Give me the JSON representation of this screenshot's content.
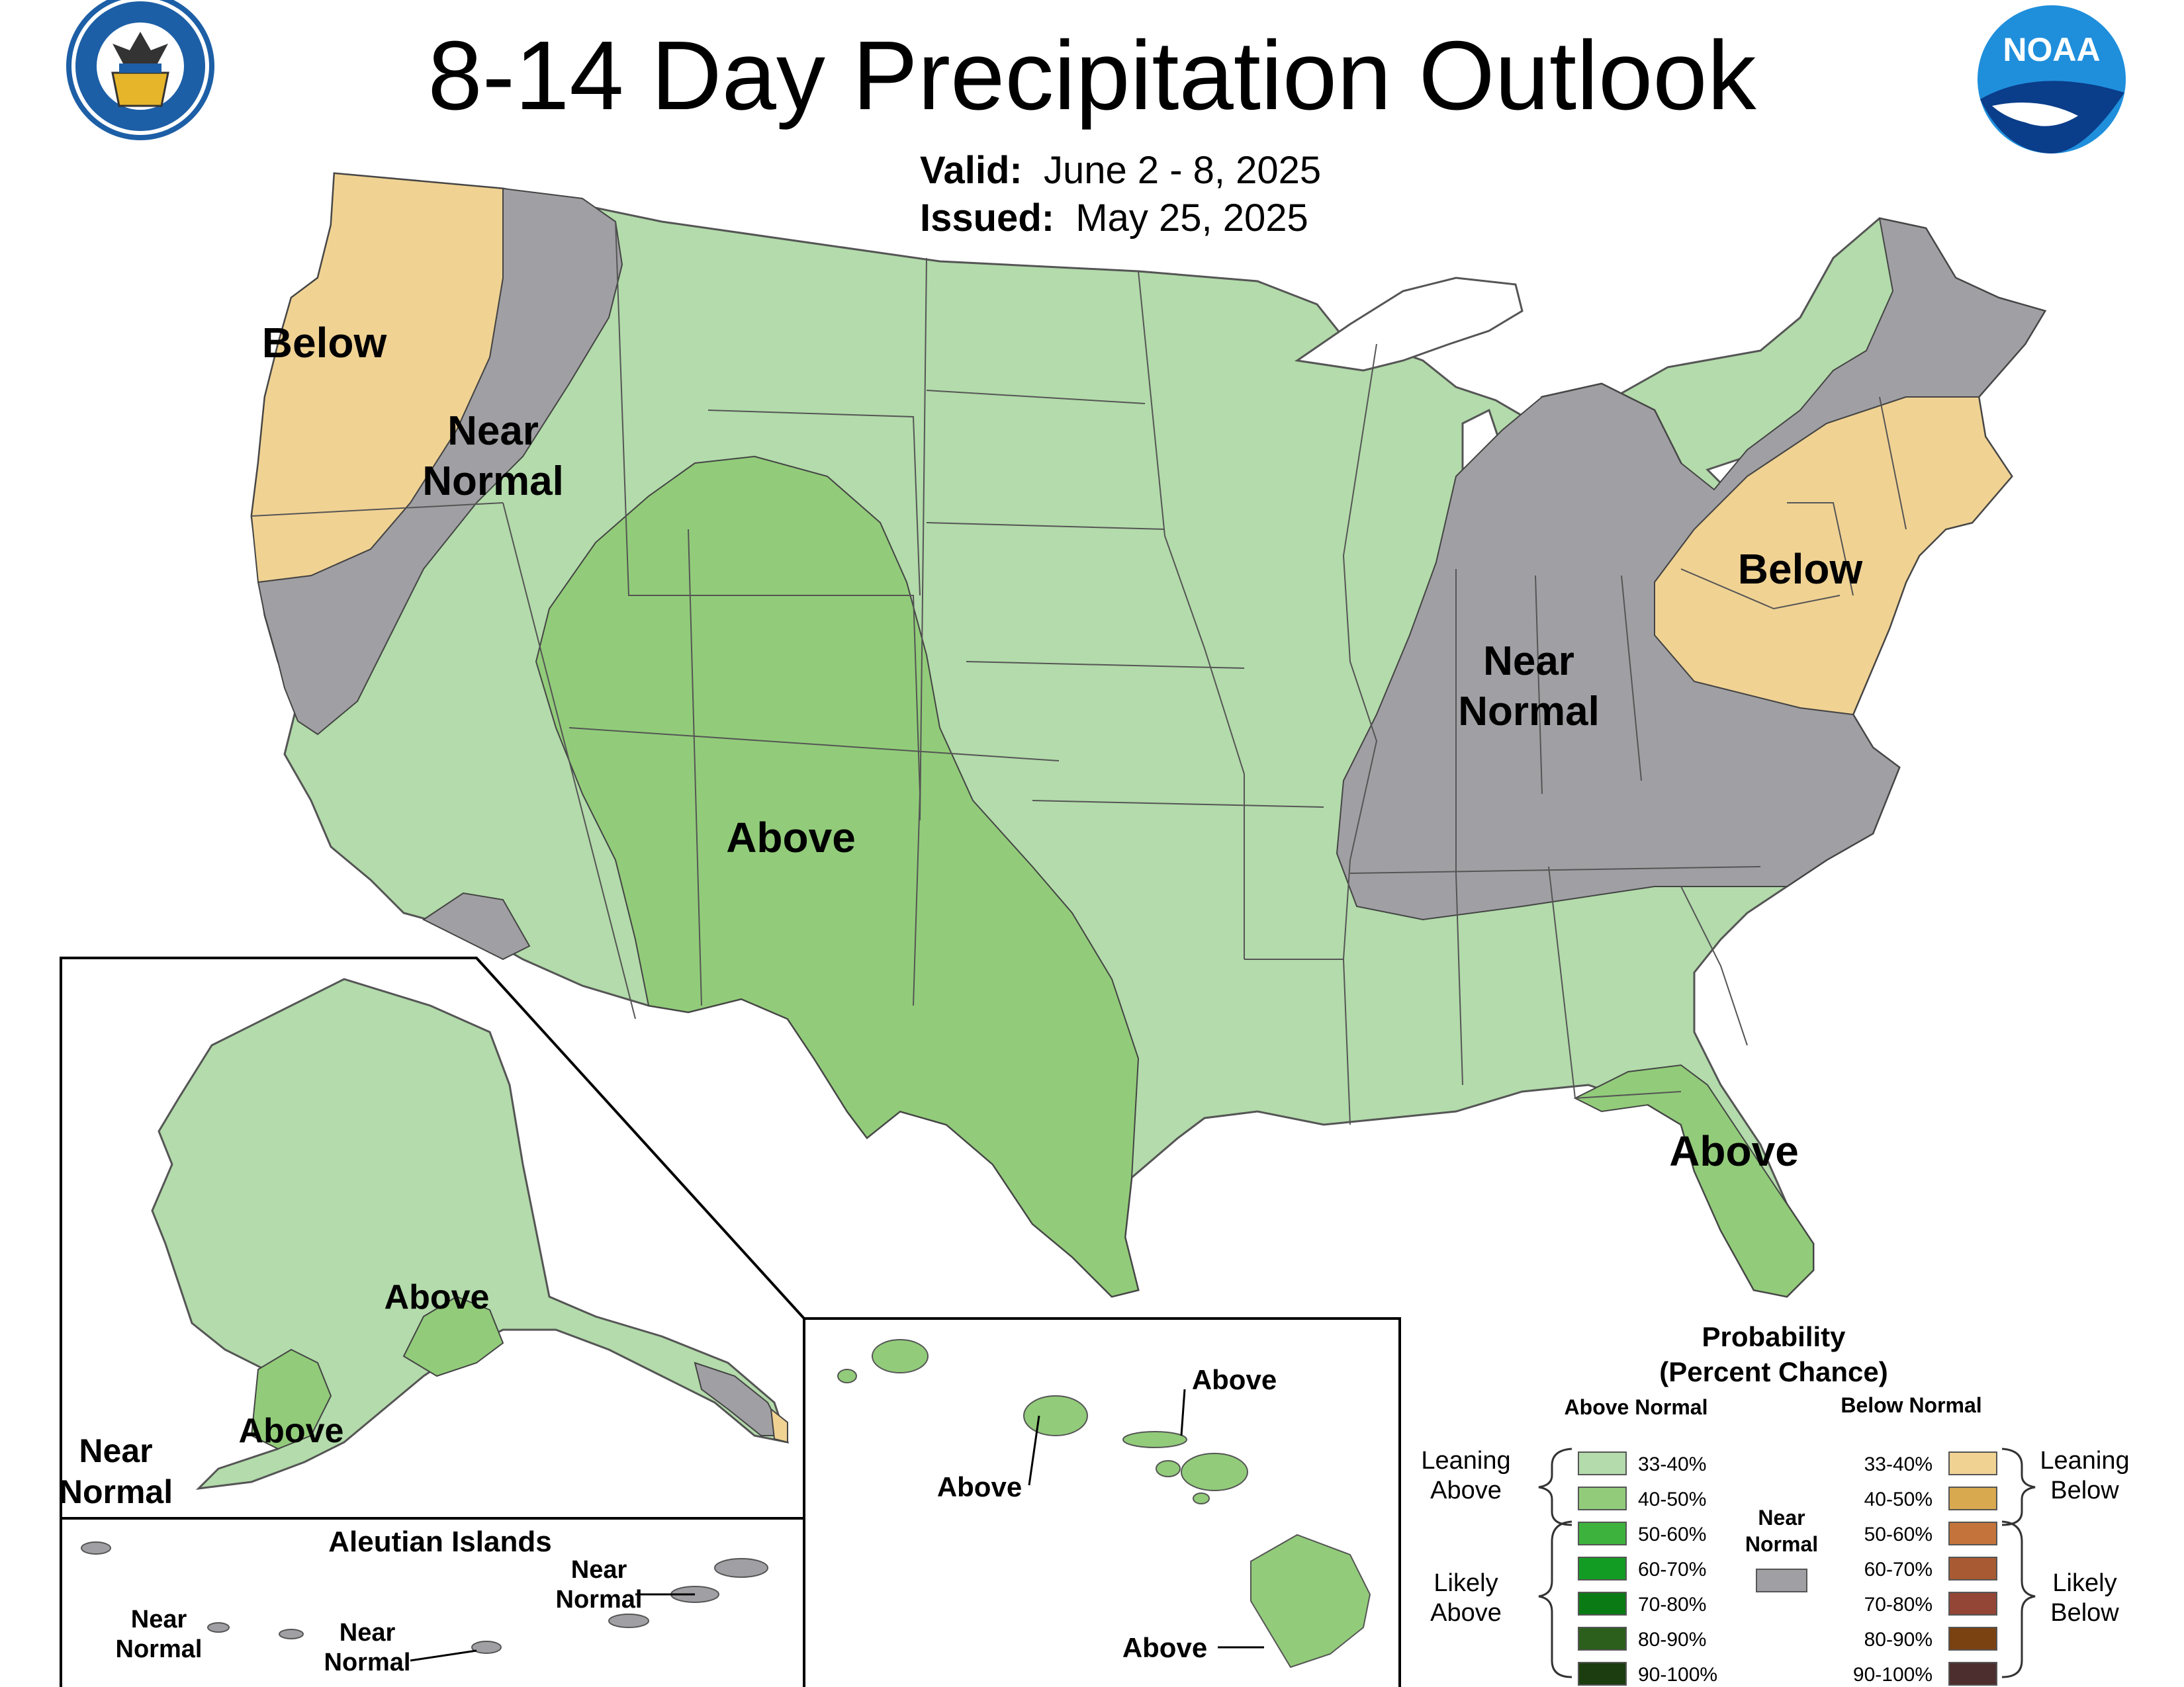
{
  "header": {
    "title": "8-14 Day Precipitation Outlook",
    "valid_label": "Valid:",
    "valid_value": "June 2 - 8, 2025",
    "issued_label": "Issued:",
    "issued_value": "May 25, 2025"
  },
  "logos": {
    "commerce_seal": "DEPARTMENT OF COMMERCE · UNITED STATES OF AMERICA",
    "noaa": "NOAA"
  },
  "colors": {
    "above_33_40": "#b3dbab",
    "above_40_50": "#92cc7a",
    "above_50_60": "#3db33d",
    "above_60_70": "#139c24",
    "above_70_80": "#0a7b14",
    "above_80_90": "#2c5f1c",
    "above_90_100": "#1c3d0f",
    "below_33_40": "#f0d293",
    "below_40_50": "#d9a950",
    "below_50_60": "#c4743a",
    "below_60_70": "#a85a32",
    "below_70_80": "#934536",
    "below_80_90": "#7a4211",
    "below_90_100": "#4d2e2e",
    "near_normal": "#a0a0a4",
    "state_line": "#555555"
  },
  "map_labels": {
    "west_below": "Below",
    "west_near_1": "Near",
    "west_near_2": "Normal",
    "central_above": "Above",
    "east_near_1": "Near",
    "east_near_2": "Normal",
    "east_below": "Below",
    "florida_above": "Above"
  },
  "alaska": {
    "above_1": "Above",
    "above_2": "Above",
    "near_1": "Near",
    "near_2": "Normal",
    "aleutian_title": "Aleutian Islands",
    "aleutian_near_a1": "Near",
    "aleutian_near_a2": "Normal",
    "aleutian_near_b1": "Near",
    "aleutian_near_b2": "Normal",
    "aleutian_near_c1": "Near",
    "aleutian_near_c2": "Normal"
  },
  "hawaii": {
    "above_1": "Above",
    "above_2": "Above",
    "above_3": "Above"
  },
  "legend": {
    "title_1": "Probability",
    "title_2": "(Percent Chance)",
    "above_header": "Above Normal",
    "below_header": "Below Normal",
    "near_1": "Near",
    "near_2": "Normal",
    "leaning_above_1": "Leaning",
    "leaning_above_2": "Above",
    "likely_above_1": "Likely",
    "likely_above_2": "Above",
    "leaning_below_1": "Leaning",
    "leaning_below_2": "Below",
    "likely_below_1": "Likely",
    "likely_below_2": "Below",
    "bins": [
      "33-40%",
      "40-50%",
      "50-60%",
      "60-70%",
      "70-80%",
      "80-90%",
      "90-100%"
    ]
  }
}
